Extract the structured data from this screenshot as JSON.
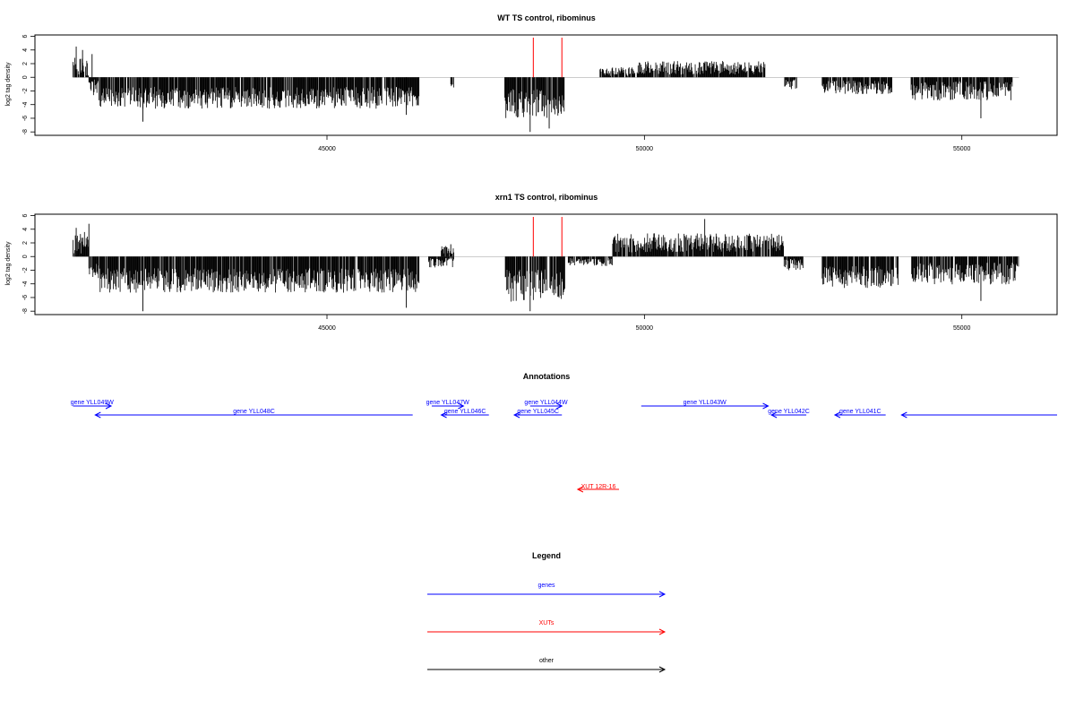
{
  "colors": {
    "axis": "#000000",
    "baseline": "#999999",
    "bars": "#000000",
    "marker": "#ff0000",
    "gene": "#0000ff",
    "xut": "#ff0000",
    "other": "#000000"
  },
  "chart_data": [
    {
      "type": "bar",
      "title": "WT TS control, ribominus",
      "ylabel": "log2 tag density",
      "xlim": [
        40400,
        56500
      ],
      "ylim": [
        -8.5,
        6.2
      ],
      "yticks": [
        6,
        4,
        2,
        0,
        -2,
        -4,
        -6,
        -8
      ],
      "xticks": [
        45000,
        50000,
        55000
      ],
      "markers": [
        48250,
        48700
      ],
      "segments": [
        {
          "from": 41000,
          "to": 41250,
          "mean": 1.5,
          "amp": 1.6,
          "seed": 1
        },
        {
          "from": 41250,
          "to": 41400,
          "mean": -1.5,
          "amp": 1.2,
          "seed": 2
        },
        {
          "from": 41400,
          "to": 46450,
          "mean": -3.0,
          "amp": 1.6,
          "seed": 3
        },
        {
          "from": 46950,
          "to": 47000,
          "mean": -1.2,
          "amp": 0.3,
          "seed": 4
        },
        {
          "from": 47800,
          "to": 48750,
          "mean": -3.8,
          "amp": 2.2,
          "seed": 5
        },
        {
          "from": 49300,
          "to": 49900,
          "mean": 0.8,
          "amp": 0.7,
          "seed": 6
        },
        {
          "from": 49900,
          "to": 51900,
          "mean": 1.4,
          "amp": 1.0,
          "seed": 7
        },
        {
          "from": 52200,
          "to": 52400,
          "mean": -1.0,
          "amp": 0.8,
          "seed": 8
        },
        {
          "from": 52800,
          "to": 53900,
          "mean": -1.5,
          "amp": 1.0,
          "seed": 9
        },
        {
          "from": 54200,
          "to": 55800,
          "mean": -2.0,
          "amp": 1.4,
          "seed": 10
        }
      ],
      "peaks": [
        [
          41050,
          4.5
        ],
        [
          41150,
          4.0
        ],
        [
          41300,
          3.4
        ],
        [
          42100,
          -6.5
        ],
        [
          48200,
          -8.0
        ],
        [
          48500,
          -7.5
        ],
        [
          55300,
          -6.0
        ],
        [
          46250,
          -5.5
        ]
      ]
    },
    {
      "type": "bar",
      "title": "xrn1 TS control, ribominus",
      "ylabel": "log2 tag density",
      "xlim": [
        40400,
        56500
      ],
      "ylim": [
        -8.5,
        6.2
      ],
      "yticks": [
        6,
        4,
        2,
        0,
        -2,
        -4,
        -6,
        -8
      ],
      "xticks": [
        45000,
        50000,
        55000
      ],
      "markers": [
        48250,
        48700
      ],
      "segments": [
        {
          "from": 41000,
          "to": 41250,
          "mean": 2.0,
          "amp": 1.8,
          "seed": 11
        },
        {
          "from": 41250,
          "to": 41400,
          "mean": -1.8,
          "amp": 1.2,
          "seed": 12
        },
        {
          "from": 41400,
          "to": 46450,
          "mean": -3.5,
          "amp": 1.8,
          "seed": 13
        },
        {
          "from": 46600,
          "to": 47000,
          "mean": -0.8,
          "amp": 0.8,
          "seed": 14
        },
        {
          "from": 46800,
          "to": 47000,
          "mean": 1.0,
          "amp": 0.6,
          "seed": 15
        },
        {
          "from": 47800,
          "to": 48750,
          "mean": -4.2,
          "amp": 2.4,
          "seed": 16
        },
        {
          "from": 48800,
          "to": 49500,
          "mean": -0.8,
          "amp": 0.6,
          "seed": 17
        },
        {
          "from": 49500,
          "to": 52200,
          "mean": 2.0,
          "amp": 1.4,
          "seed": 18
        },
        {
          "from": 52200,
          "to": 52500,
          "mean": -1.2,
          "amp": 0.9,
          "seed": 19
        },
        {
          "from": 52800,
          "to": 54000,
          "mean": -3.0,
          "amp": 1.6,
          "seed": 20
        },
        {
          "from": 54200,
          "to": 55900,
          "mean": -2.5,
          "amp": 1.6,
          "seed": 21
        }
      ],
      "peaks": [
        [
          41050,
          4.2
        ],
        [
          41250,
          4.8
        ],
        [
          42100,
          -8.0
        ],
        [
          46250,
          -7.5
        ],
        [
          46950,
          1.8
        ],
        [
          48200,
          -8.0
        ],
        [
          50950,
          5.5
        ],
        [
          55300,
          -6.5
        ]
      ]
    }
  ],
  "annotations": {
    "title": "Annotations",
    "xlim": [
      40400,
      56500
    ],
    "genes": [
      {
        "label": "gene YLL049W",
        "start": 41000,
        "end": 41600,
        "dir": "right",
        "row": 1
      },
      {
        "label": "gene YLL048C",
        "start": 41350,
        "end": 46350,
        "dir": "left",
        "row": 2
      },
      {
        "label": "gene YLL047W",
        "start": 46650,
        "end": 47150,
        "dir": "right",
        "row": 1
      },
      {
        "label": "gene YLL046C",
        "start": 46800,
        "end": 47550,
        "dir": "left",
        "row": 2
      },
      {
        "label": "gene YLL044W",
        "start": 48200,
        "end": 48700,
        "dir": "right",
        "row": 1
      },
      {
        "label": "gene YLL045C",
        "start": 47950,
        "end": 48700,
        "dir": "left",
        "row": 2
      },
      {
        "label": "gene YLL043W",
        "start": 49950,
        "end": 51950,
        "dir": "right",
        "row": 1
      },
      {
        "label": "gene YLL042C",
        "start": 52000,
        "end": 52550,
        "dir": "left",
        "row": 2
      },
      {
        "label": "gene YLL041C",
        "start": 53000,
        "end": 53800,
        "dir": "left",
        "row": 2
      },
      {
        "label": "",
        "start": 54050,
        "end": 56500,
        "dir": "left",
        "row": 2
      }
    ],
    "xuts": [
      {
        "label": "XUT 12R-16",
        "start": 48950,
        "end": 49600,
        "dir": "left"
      }
    ]
  },
  "legend": {
    "title": "Legend",
    "items": [
      {
        "label": "genes",
        "color": "#0000ff"
      },
      {
        "label": "XUTs",
        "color": "#ff0000"
      },
      {
        "label": "other",
        "color": "#000000"
      }
    ]
  }
}
